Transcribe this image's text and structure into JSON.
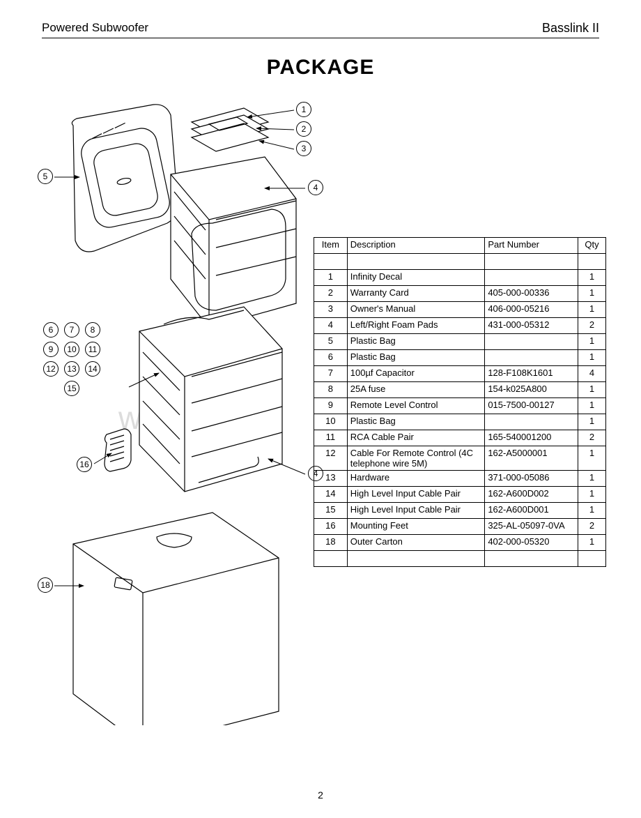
{
  "header": {
    "left": "Powered Subwoofer",
    "right": "Basslink II"
  },
  "title": "PACKAGE",
  "page_number": "2",
  "watermark": "www.radio",
  "table": {
    "columns": [
      "Item",
      "Description",
      "Part Number",
      "Qty"
    ],
    "rows": [
      {
        "item": "",
        "desc": "",
        "part": "",
        "qty": ""
      },
      {
        "item": "1",
        "desc": "Infinity Decal",
        "part": "",
        "qty": "1"
      },
      {
        "item": "2",
        "desc": "Warranty Card",
        "part": "405-000-00336",
        "qty": "1"
      },
      {
        "item": "3",
        "desc": "Owner's Manual",
        "part": "406-000-05216",
        "qty": "1"
      },
      {
        "item": "4",
        "desc": "Left/Right Foam Pads",
        "part": "431-000-05312",
        "qty": "2"
      },
      {
        "item": "5",
        "desc": "Plastic Bag",
        "part": "",
        "qty": "1"
      },
      {
        "item": "6",
        "desc": "Plastic Bag",
        "part": "",
        "qty": "1"
      },
      {
        "item": "7",
        "desc": "100µf Capacitor",
        "part": "128-F108K1601",
        "qty": "4"
      },
      {
        "item": "8",
        "desc": "25A fuse",
        "part": "154-k025A800",
        "qty": "1"
      },
      {
        "item": "9",
        "desc": "Remote Level Control",
        "part": "015-7500-00127",
        "qty": "1"
      },
      {
        "item": "10",
        "desc": "Plastic Bag",
        "part": "",
        "qty": "1"
      },
      {
        "item": "11",
        "desc": "RCA Cable Pair",
        "part": "165-540001200",
        "qty": "2"
      },
      {
        "item": "12",
        "desc": "Cable For Remote Control (4C telephone wire 5M)",
        "part": "162-A5000001",
        "qty": "1"
      },
      {
        "item": "13",
        "desc": "Hardware",
        "part": "371-000-05086",
        "qty": "1"
      },
      {
        "item": "14",
        "desc": "High Level Input Cable Pair",
        "part": "162-A600D002",
        "qty": "1"
      },
      {
        "item": "15",
        "desc": "High Level Input Cable Pair",
        "part": "162-A600D001",
        "qty": "1"
      },
      {
        "item": "16",
        "desc": "Mounting Feet",
        "part": "325-AL-05097-0VA",
        "qty": "2"
      },
      {
        "item": "18",
        "desc": "Outer Carton",
        "part": "402-000-05320",
        "qty": "1"
      },
      {
        "item": "",
        "desc": "",
        "part": "",
        "qty": ""
      }
    ]
  },
  "callouts": {
    "c1": "1",
    "c2": "2",
    "c3": "3",
    "c4a": "4",
    "c4b": "4",
    "c5": "5",
    "c6": "6",
    "c7": "7",
    "c8": "8",
    "c9": "9",
    "c10": "10",
    "c11": "11",
    "c12": "12",
    "c13": "13",
    "c14": "14",
    "c15": "15",
    "c16": "16",
    "c18": "18"
  },
  "style": {
    "page_bg": "#ffffff",
    "ink": "#000000",
    "watermark_color": "#dcdcdc",
    "title_fontsize": 30,
    "body_fontsize": 13
  }
}
